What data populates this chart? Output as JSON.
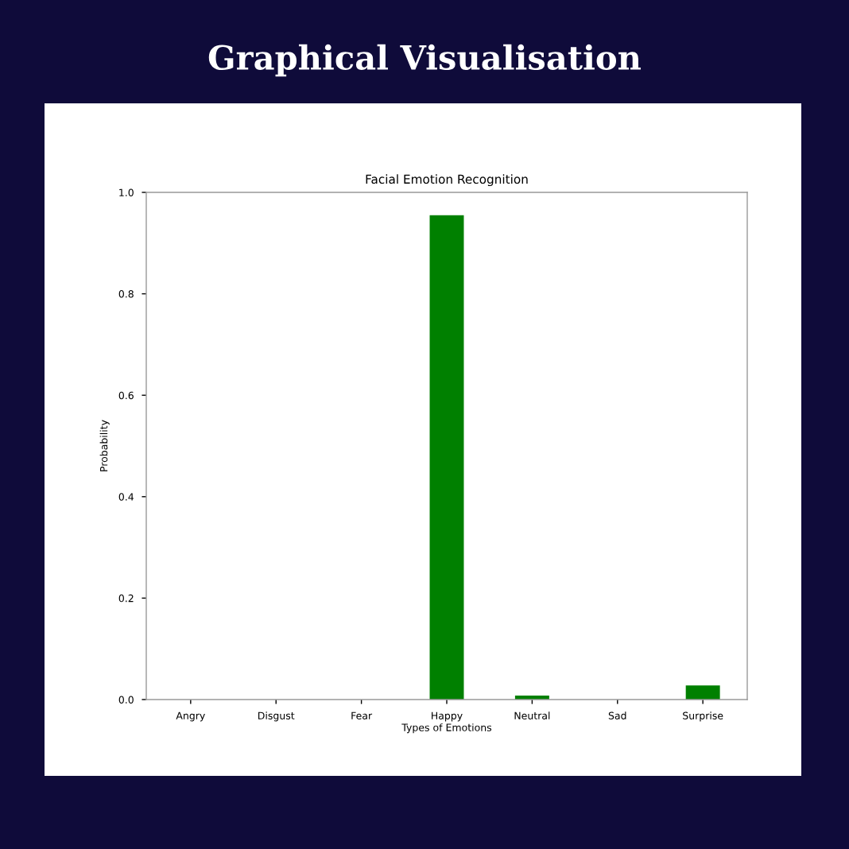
{
  "chart_data": {
    "type": "bar",
    "title": "Graphical Visualisation",
    "subtitle": "Facial Emotion Recognition",
    "xlabel": "Types of Emotions",
    "ylabel": "Probability",
    "categories": [
      "Angry",
      "Disgust",
      "Fear",
      "Happy",
      "Neutral",
      "Sad",
      "Surprise"
    ],
    "values": [
      0,
      0,
      0,
      0.955,
      0.008,
      0,
      0.028
    ],
    "color": "#008000",
    "ylim": [
      0,
      1.0
    ],
    "yticks": [
      {
        "value": 0,
        "label": "0.0"
      },
      0.2,
      0.4,
      0.6,
      0.8,
      {
        "value": 1,
        "label": "1.0"
      }
    ],
    "grid": false,
    "legend": false
  }
}
